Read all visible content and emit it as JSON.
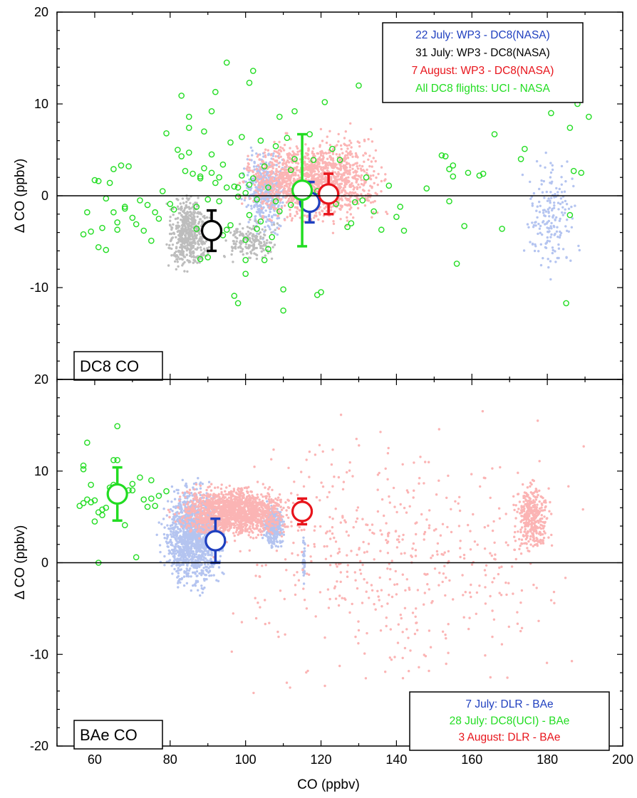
{
  "chart_data": [
    {
      "type": "scatter",
      "panel_label": "DC8 CO",
      "xlabel": "CO (ppbv)",
      "ylabel": "Δ CO (ppbv)",
      "xlim": [
        50,
        200
      ],
      "ylim": [
        -20,
        20
      ],
      "x_ticks": [
        60,
        80,
        100,
        120,
        140,
        160,
        180,
        200
      ],
      "y_ticks": [
        -10,
        0,
        10,
        20
      ],
      "zero_line": true,
      "legend_position": "top-right",
      "series": [
        {
          "name": "22 July: WP3 - DC8(NASA)",
          "color": "#1f3fbf",
          "scatter_color": "#b4c4f0",
          "clusters": [
            {
              "x": [
                98,
                112
              ],
              "y": [
                -5,
                6
              ],
              "n": 450
            },
            {
              "x": [
                172,
                190
              ],
              "y": [
                -11,
                6
              ],
              "n": 180
            }
          ],
          "mean": {
            "x": 117,
            "y": -0.7,
            "err_low": -2.9,
            "err_high": 1.5
          }
        },
        {
          "name": "31 July: WP3 - DC8(NASA)",
          "color": "#000000",
          "scatter_color": "#bdbdbd",
          "clusters": [
            {
              "x": [
                78,
                92
              ],
              "y": [
                -9,
                1
              ],
              "n": 550
            },
            {
              "x": [
                92,
                110
              ],
              "y": [
                -8,
                -2
              ],
              "n": 180
            }
          ],
          "mean": {
            "x": 91,
            "y": -3.8,
            "err_low": -6.0,
            "err_high": -1.6
          }
        },
        {
          "name": "7 August: WP3 - DC8(NASA)",
          "color": "#e8141b",
          "scatter_color": "#fbb4b4",
          "clusters": [
            {
              "x": [
                95,
                140
              ],
              "y": [
                -4,
                7
              ],
              "n": 1400
            },
            {
              "x": [
                110,
                140
              ],
              "y": [
                -5,
                10
              ],
              "n": 200
            }
          ],
          "mean": {
            "x": 122,
            "y": 0.2,
            "err_low": -2.0,
            "err_high": 2.4
          }
        },
        {
          "name": "All DC8 flights: UCI - NASA",
          "color": "#22dd22",
          "points": [
            [
              57,
              -4.2
            ],
            [
              58,
              -1.8
            ],
            [
              59,
              -3.9
            ],
            [
              60,
              1.7
            ],
            [
              61,
              1.6
            ],
            [
              61,
              -5.6
            ],
            [
              62,
              -3.5
            ],
            [
              63,
              -0.3
            ],
            [
              63,
              -5.9
            ],
            [
              64,
              1.4
            ],
            [
              65,
              -1.8
            ],
            [
              65,
              2.9
            ],
            [
              66,
              -2.9
            ],
            [
              66,
              -3.7
            ],
            [
              67,
              3.3
            ],
            [
              68,
              -1.2
            ],
            [
              68,
              -1.4
            ],
            [
              69,
              3.2
            ],
            [
              70,
              -2.4
            ],
            [
              71,
              -3.1
            ],
            [
              72,
              -0.5
            ],
            [
              73,
              -3.8
            ],
            [
              74,
              -1.0
            ],
            [
              75,
              -4.9
            ],
            [
              76,
              -1.8
            ],
            [
              77,
              -2.5
            ],
            [
              78,
              0.5
            ],
            [
              79,
              6.8
            ],
            [
              80,
              -0.9
            ],
            [
              81,
              -1.5
            ],
            [
              82,
              5.0
            ],
            [
              83,
              4.3
            ],
            [
              83,
              10.9
            ],
            [
              84,
              2.7
            ],
            [
              85,
              8.6
            ],
            [
              85,
              7.4
            ],
            [
              85,
              4.7
            ],
            [
              86,
              2.4
            ],
            [
              87,
              -1.2
            ],
            [
              87,
              -3.6
            ],
            [
              88,
              1.9
            ],
            [
              88,
              2.1
            ],
            [
              88,
              -6.9
            ],
            [
              89,
              3.0
            ],
            [
              89,
              7.0
            ],
            [
              90,
              -0.4
            ],
            [
              90,
              -6.7
            ],
            [
              91,
              9.2
            ],
            [
              91,
              2.5
            ],
            [
              91,
              4.5
            ],
            [
              92,
              1.4
            ],
            [
              92,
              11.3
            ],
            [
              93,
              2.0
            ],
            [
              93,
              -0.6
            ],
            [
              94,
              3.4
            ],
            [
              94,
              -4.3
            ],
            [
              95,
              14.5
            ],
            [
              95,
              0.9
            ],
            [
              95,
              -3.7
            ],
            [
              96,
              5.8
            ],
            [
              96,
              -3.2
            ],
            [
              97,
              1.0
            ],
            [
              97,
              -10.9
            ],
            [
              98,
              0.9
            ],
            [
              98,
              -0.1
            ],
            [
              98,
              -11.7
            ],
            [
              99,
              2.2
            ],
            [
              99,
              6.4
            ],
            [
              100,
              -4.8
            ],
            [
              100,
              -8.5
            ],
            [
              100,
              -7.0
            ],
            [
              100,
              0.3
            ],
            [
              101,
              12.3
            ],
            [
              101,
              1.2
            ],
            [
              101,
              -2.1
            ],
            [
              102,
              13.6
            ],
            [
              102,
              1.9
            ],
            [
              103,
              -0.4
            ],
            [
              103,
              -3.6
            ],
            [
              104,
              6.0
            ],
            [
              104,
              -2.8
            ],
            [
              105,
              -7.0
            ],
            [
              105,
              3.2
            ],
            [
              106,
              0.9
            ],
            [
              106,
              -5.8
            ],
            [
              107,
              -4.5
            ],
            [
              108,
              5.4
            ],
            [
              108,
              -0.6
            ],
            [
              109,
              -1.7
            ],
            [
              109,
              8.6
            ],
            [
              110,
              -12.5
            ],
            [
              110,
              -10.2
            ],
            [
              111,
              6.3
            ],
            [
              112,
              2.8
            ],
            [
              112,
              -1.0
            ],
            [
              113,
              9.2
            ],
            [
              113,
              4.0
            ],
            [
              115,
              0.9
            ],
            [
              117,
              6.7
            ],
            [
              118,
              3.9
            ],
            [
              119,
              -10.8
            ],
            [
              119,
              0.5
            ],
            [
              120,
              -10.5
            ],
            [
              121,
              10.2
            ],
            [
              123,
              5.1
            ],
            [
              124,
              -0.9
            ],
            [
              125,
              3.9
            ],
            [
              127,
              -3.4
            ],
            [
              128,
              -3.0
            ],
            [
              129,
              -0.7
            ],
            [
              130,
              12.0
            ],
            [
              131,
              -0.5
            ],
            [
              132,
              2.0
            ],
            [
              134,
              -1.7
            ],
            [
              136,
              -3.7
            ],
            [
              138,
              1.1
            ],
            [
              140,
              -2.3
            ],
            [
              141,
              -1.2
            ],
            [
              142,
              -3.8
            ],
            [
              148,
              0.8
            ],
            [
              152,
              4.4
            ],
            [
              153,
              4.3
            ],
            [
              154,
              2.9
            ],
            [
              154,
              -0.6
            ],
            [
              155,
              3.3
            ],
            [
              155,
              2.1
            ],
            [
              156,
              -7.4
            ],
            [
              158,
              -3.3
            ],
            [
              159,
              2.5
            ],
            [
              162,
              2.2
            ],
            [
              163,
              2.4
            ],
            [
              166,
              6.7
            ],
            [
              168,
              -3.6
            ],
            [
              173,
              4.0
            ],
            [
              174,
              5.1
            ],
            [
              181,
              9.0
            ],
            [
              185,
              -11.7
            ],
            [
              186,
              -2.1
            ],
            [
              186,
              7.4
            ],
            [
              187,
              2.7
            ],
            [
              188,
              10.0
            ],
            [
              189,
              2.5
            ],
            [
              191,
              8.6
            ]
          ],
          "mean": {
            "x": 115,
            "y": 0.6,
            "err_low": -5.5,
            "err_high": 6.7
          }
        }
      ]
    },
    {
      "type": "scatter",
      "panel_label": "BAe CO",
      "xlabel": "CO (ppbv)",
      "ylabel": "Δ CO (ppbv)",
      "xlim": [
        50,
        200
      ],
      "ylim": [
        -20,
        20
      ],
      "x_ticks": [
        60,
        80,
        100,
        120,
        140,
        160,
        180,
        200
      ],
      "y_ticks": [
        -20,
        -10,
        0,
        10,
        20
      ],
      "zero_line": true,
      "legend_position": "bottom-right",
      "series": [
        {
          "name": "7 July: DLR - BAe",
          "color": "#1f3fbf",
          "scatter_color": "#b4c4f0",
          "clusters": [
            {
              "x": [
                76,
                96
              ],
              "y": [
                -4,
                10
              ],
              "n": 1300
            },
            {
              "x": [
                104,
                111
              ],
              "y": [
                1,
                7
              ],
              "n": 350
            },
            {
              "x": [
                115,
                116
              ],
              "y": [
                -3,
                4
              ],
              "n": 40
            }
          ],
          "mean": {
            "x": 92,
            "y": 2.4,
            "err_low": 0.0,
            "err_high": 4.8
          }
        },
        {
          "name": "28 July: DC8(UCI) - BAe",
          "color": "#22dd22",
          "points": [
            [
              56,
              6.2
            ],
            [
              57,
              6.5
            ],
            [
              57,
              10.6
            ],
            [
              57,
              10.2
            ],
            [
              58,
              13.1
            ],
            [
              58,
              6.9
            ],
            [
              59,
              8.5
            ],
            [
              59,
              6.6
            ],
            [
              60,
              6.8
            ],
            [
              60,
              4.5
            ],
            [
              61,
              0.0
            ],
            [
              61,
              5.5
            ],
            [
              62,
              5.2
            ],
            [
              62,
              5.8
            ],
            [
              63,
              6.0
            ],
            [
              64,
              8.2
            ],
            [
              65,
              11.2
            ],
            [
              65,
              8.5
            ],
            [
              66,
              11.2
            ],
            [
              66,
              14.9
            ],
            [
              66,
              6.9
            ],
            [
              67,
              8.2
            ],
            [
              68,
              4.1
            ],
            [
              69,
              7.9
            ],
            [
              70,
              8.6
            ],
            [
              70,
              7.9
            ],
            [
              71,
              0.6
            ],
            [
              72,
              9.3
            ],
            [
              73,
              6.9
            ],
            [
              74,
              6.1
            ],
            [
              75,
              7.0
            ],
            [
              75,
              9.0
            ],
            [
              76,
              6.2
            ],
            [
              77,
              7.3
            ],
            [
              79,
              7.8
            ]
          ],
          "mean": {
            "x": 66,
            "y": 7.5,
            "err_low": 4.6,
            "err_high": 10.4
          }
        },
        {
          "name": "3 August: DLR - BAe",
          "color": "#e8141b",
          "scatter_color": "#fbb4b4",
          "clusters": [
            {
              "x": [
                78,
                116
              ],
              "y": [
                2,
                9
              ],
              "n": 1500
            },
            {
              "x": [
                170,
                182
              ],
              "y": [
                0,
                10
              ],
              "n": 350
            },
            {
              "x": [
                80,
                200
              ],
              "y": [
                -18,
                19
              ],
              "n": 500
            }
          ],
          "mean": {
            "x": 115,
            "y": 5.6,
            "err_low": 4.2,
            "err_high": 7.0
          }
        }
      ]
    }
  ]
}
